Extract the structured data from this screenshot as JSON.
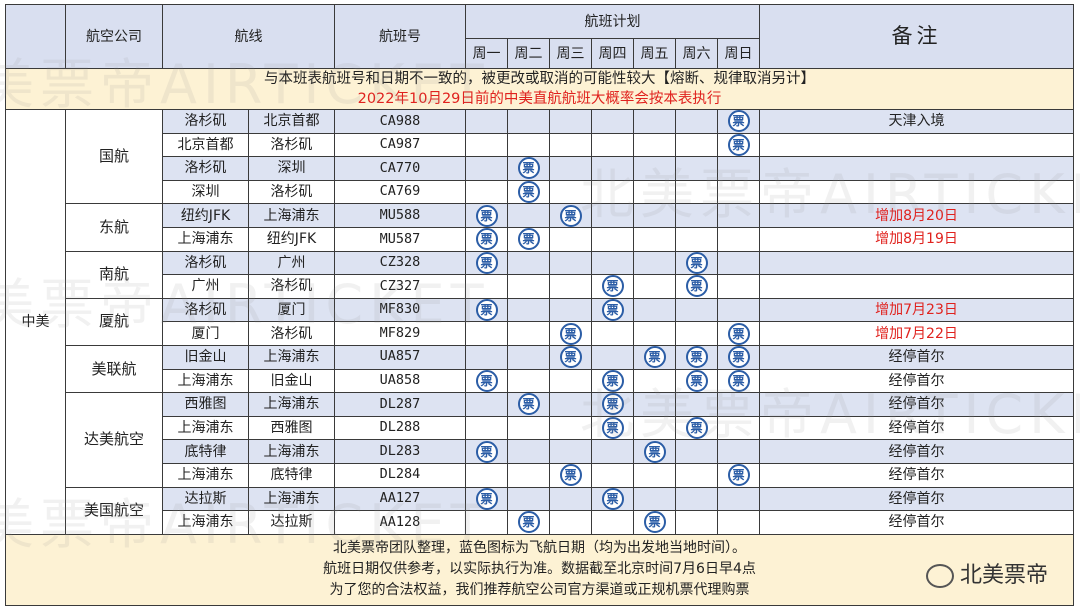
{
  "header": {
    "airline": "航空公司",
    "route": "航线",
    "flight": "航班号",
    "schedule": "航班计划",
    "days": [
      "周一",
      "周二",
      "周三",
      "周四",
      "周五",
      "周六",
      "周日"
    ],
    "remark": "备注"
  },
  "notice": {
    "line1": "与本班表航班号和日期不一致的，被更改或取消的可能性较大【熔断、规律取消另计】",
    "line2": "2022年10月29日前的中美直航航班大概率会按本表执行"
  },
  "country": "中美",
  "stamp_glyph": "票",
  "airlines": [
    {
      "name": "国航",
      "rows": [
        {
          "from": "洛杉矶",
          "to": "北京首都",
          "flight": "CA988",
          "days": [
            0,
            0,
            0,
            0,
            0,
            0,
            1
          ],
          "remark": "天津入境",
          "remark_red": false
        },
        {
          "from": "北京首都",
          "to": "洛杉矶",
          "flight": "CA987",
          "days": [
            0,
            0,
            0,
            0,
            0,
            0,
            1
          ],
          "remark": "",
          "remark_red": false
        },
        {
          "from": "洛杉矶",
          "to": "深圳",
          "flight": "CA770",
          "days": [
            0,
            1,
            0,
            0,
            0,
            0,
            0
          ],
          "remark": "",
          "remark_red": false
        },
        {
          "from": "深圳",
          "to": "洛杉矶",
          "flight": "CA769",
          "days": [
            0,
            1,
            0,
            0,
            0,
            0,
            0
          ],
          "remark": "",
          "remark_red": false
        }
      ]
    },
    {
      "name": "东航",
      "rows": [
        {
          "from": "纽约JFK",
          "to": "上海浦东",
          "flight": "MU588",
          "days": [
            1,
            0,
            1,
            0,
            0,
            0,
            0
          ],
          "remark": "增加8月20日",
          "remark_red": true
        },
        {
          "from": "上海浦东",
          "to": "纽约JFK",
          "flight": "MU587",
          "days": [
            1,
            1,
            0,
            0,
            0,
            0,
            0
          ],
          "remark": "增加8月19日",
          "remark_red": true
        }
      ]
    },
    {
      "name": "南航",
      "rows": [
        {
          "from": "洛杉矶",
          "to": "广州",
          "flight": "CZ328",
          "days": [
            1,
            0,
            0,
            0,
            0,
            1,
            0
          ],
          "remark": "",
          "remark_red": false
        },
        {
          "from": "广州",
          "to": "洛杉矶",
          "flight": "CZ327",
          "days": [
            0,
            0,
            0,
            1,
            0,
            1,
            0
          ],
          "remark": "",
          "remark_red": false
        }
      ]
    },
    {
      "name": "厦航",
      "rows": [
        {
          "from": "洛杉矶",
          "to": "厦门",
          "flight": "MF830",
          "days": [
            1,
            0,
            0,
            1,
            0,
            0,
            0
          ],
          "remark": "增加7月23日",
          "remark_red": true
        },
        {
          "from": "厦门",
          "to": "洛杉矶",
          "flight": "MF829",
          "days": [
            0,
            0,
            1,
            0,
            0,
            0,
            1
          ],
          "remark": "增加7月22日",
          "remark_red": true
        }
      ]
    },
    {
      "name": "美联航",
      "rows": [
        {
          "from": "旧金山",
          "to": "上海浦东",
          "flight": "UA857",
          "days": [
            0,
            0,
            1,
            0,
            1,
            1,
            1
          ],
          "remark": "经停首尔",
          "remark_red": false
        },
        {
          "from": "上海浦东",
          "to": "旧金山",
          "flight": "UA858",
          "days": [
            1,
            0,
            0,
            1,
            0,
            1,
            1
          ],
          "remark": "经停首尔",
          "remark_red": false
        }
      ]
    },
    {
      "name": "达美航空",
      "rows": [
        {
          "from": "西雅图",
          "to": "上海浦东",
          "flight": "DL287",
          "days": [
            0,
            1,
            0,
            1,
            0,
            0,
            0
          ],
          "remark": "经停首尔",
          "remark_red": false
        },
        {
          "from": "上海浦东",
          "to": "西雅图",
          "flight": "DL288",
          "days": [
            0,
            0,
            0,
            1,
            0,
            1,
            0
          ],
          "remark": "经停首尔",
          "remark_red": false
        },
        {
          "from": "底特律",
          "to": "上海浦东",
          "flight": "DL283",
          "days": [
            1,
            0,
            0,
            0,
            1,
            0,
            0
          ],
          "remark": "经停首尔",
          "remark_red": false
        },
        {
          "from": "上海浦东",
          "to": "底特律",
          "flight": "DL284",
          "days": [
            0,
            0,
            1,
            0,
            0,
            0,
            1
          ],
          "remark": "经停首尔",
          "remark_red": false
        }
      ]
    },
    {
      "name": "美国航空",
      "rows": [
        {
          "from": "达拉斯",
          "to": "上海浦东",
          "flight": "AA127",
          "days": [
            1,
            0,
            0,
            1,
            0,
            0,
            0
          ],
          "remark": "经停首尔",
          "remark_red": false
        },
        {
          "from": "上海浦东",
          "to": "达拉斯",
          "flight": "AA128",
          "days": [
            0,
            1,
            0,
            0,
            1,
            0,
            0
          ],
          "remark": "经停首尔",
          "remark_red": false
        }
      ]
    }
  ],
  "footer": {
    "line1": "北美票帝团队整理，蓝色图标为飞航日期（均为出发地当地时间）。",
    "line2": "航班日期仅供参考，以实际执行为准。数据截至北京时间7月6日早4点",
    "line3": "为了您的合法权益，我们推荐航空公司官方渠道或正规机票代理购票",
    "brand": "北美票帝"
  },
  "watermark": [
    "美票帝AIRTICKET",
    "北美票帝AIRTICKE",
    "美票帝AIRTICKET",
    "北美票帝AIRTICKE",
    "美票帝AIRTICKET"
  ],
  "colors": {
    "stamp_blue": "#2b5da6",
    "row_blue": "#dde3f2",
    "notice_bg": "#fdf2d4",
    "alert_red": "#e0221e"
  }
}
